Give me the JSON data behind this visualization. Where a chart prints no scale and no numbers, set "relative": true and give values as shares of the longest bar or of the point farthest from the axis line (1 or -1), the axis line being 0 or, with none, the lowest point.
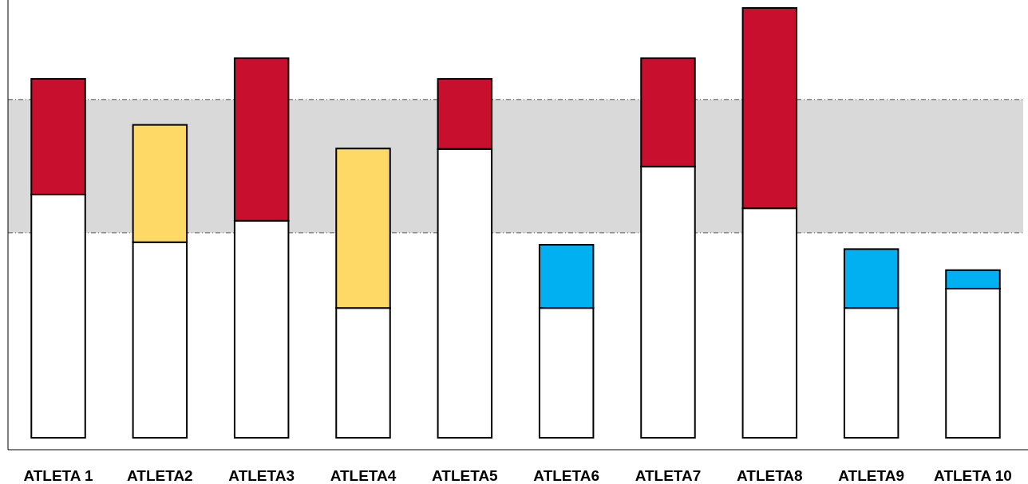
{
  "chart_data": {
    "type": "bar",
    "relative": true,
    "stacked": true,
    "categories": [
      "ATLETA 1",
      "ATLETA2",
      "ATLETA3",
      "ATLETA4",
      "ATLETA5",
      "ATLETA6",
      "ATLETA7",
      "ATLETA8",
      "ATLETA9",
      "ATLETA 10"
    ],
    "series": [
      {
        "color": "#ffffff",
        "values": [
          0.566,
          0.455,
          0.505,
          0.302,
          0.672,
          0.302,
          0.631,
          0.534,
          0.302,
          0.347
        ]
      },
      {
        "colors": [
          "#c8102e",
          "#ffd966",
          "#c8102e",
          "#ffd966",
          "#c8102e",
          "#00b0f0",
          "#c8102e",
          "#c8102e",
          "#00b0f0",
          "#00b0f0"
        ],
        "values": [
          0.269,
          0.273,
          0.378,
          0.371,
          0.163,
          0.147,
          0.252,
          0.466,
          0.137,
          0.043
        ]
      }
    ],
    "bands": [
      {
        "axis": "y",
        "from": 0.477,
        "to": 0.787,
        "color": "#d9d9d9"
      }
    ],
    "ref_lines": [
      {
        "axis": "y",
        "value": 0.477,
        "color": "#555555",
        "line_style": "dashed"
      },
      {
        "axis": "y",
        "value": 0.787,
        "color": "#555555",
        "line_style": "dashed"
      }
    ]
  }
}
